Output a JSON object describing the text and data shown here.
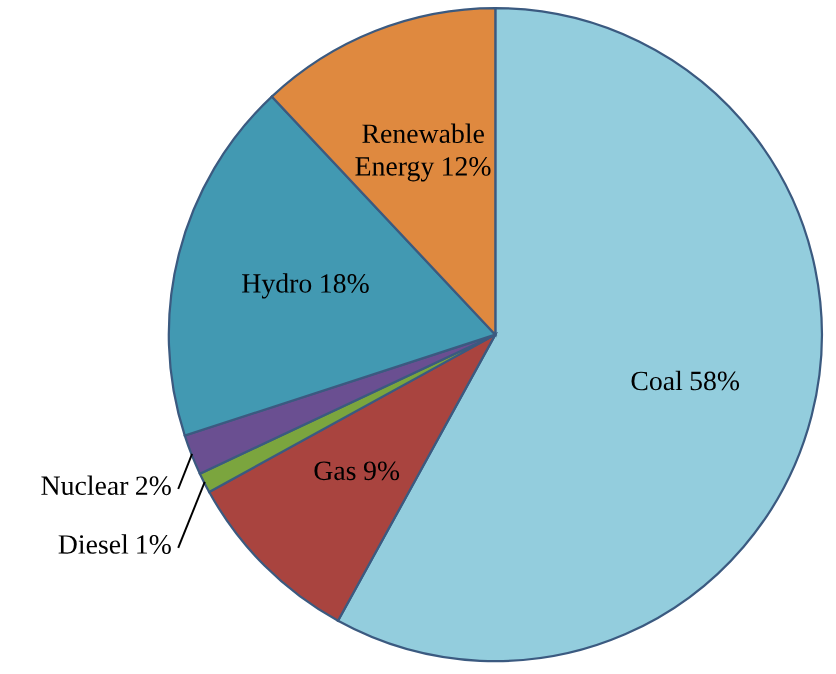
{
  "chart_data": {
    "type": "pie",
    "categories": [
      "Coal",
      "Gas",
      "Diesel",
      "Nuclear",
      "Hydro",
      "Renewable Energy"
    ],
    "values": [
      58,
      9,
      1,
      2,
      18,
      12
    ],
    "value_labels": [
      "58%",
      "9%",
      "1%",
      "2%",
      "18%",
      "12%"
    ],
    "colors": [
      "#93cddd",
      "#a9443f",
      "#7ba53e",
      "#6a4f91",
      "#4299b2",
      "#df893f"
    ]
  }
}
